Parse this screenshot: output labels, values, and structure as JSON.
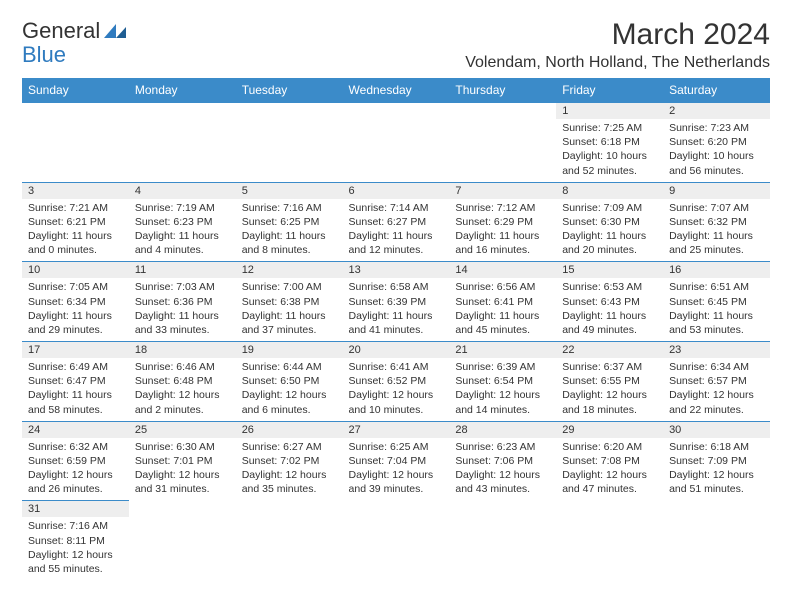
{
  "logo": {
    "text1": "General",
    "text2": "Blue"
  },
  "title": "March 2024",
  "location": "Volendam, North Holland, The Netherlands",
  "colors": {
    "header_bg": "#3b8bc9",
    "header_text": "#ffffff",
    "daynum_bg": "#eeeeee",
    "border": "#3b8bc9",
    "text": "#333333",
    "logo_blue": "#2f7bbf"
  },
  "days_of_week": [
    "Sunday",
    "Monday",
    "Tuesday",
    "Wednesday",
    "Thursday",
    "Friday",
    "Saturday"
  ],
  "weeks": [
    [
      null,
      null,
      null,
      null,
      null,
      {
        "n": "1",
        "sr": "7:25 AM",
        "ss": "6:18 PM",
        "dl": "10 hours and 52 minutes."
      },
      {
        "n": "2",
        "sr": "7:23 AM",
        "ss": "6:20 PM",
        "dl": "10 hours and 56 minutes."
      }
    ],
    [
      {
        "n": "3",
        "sr": "7:21 AM",
        "ss": "6:21 PM",
        "dl": "11 hours and 0 minutes."
      },
      {
        "n": "4",
        "sr": "7:19 AM",
        "ss": "6:23 PM",
        "dl": "11 hours and 4 minutes."
      },
      {
        "n": "5",
        "sr": "7:16 AM",
        "ss": "6:25 PM",
        "dl": "11 hours and 8 minutes."
      },
      {
        "n": "6",
        "sr": "7:14 AM",
        "ss": "6:27 PM",
        "dl": "11 hours and 12 minutes."
      },
      {
        "n": "7",
        "sr": "7:12 AM",
        "ss": "6:29 PM",
        "dl": "11 hours and 16 minutes."
      },
      {
        "n": "8",
        "sr": "7:09 AM",
        "ss": "6:30 PM",
        "dl": "11 hours and 20 minutes."
      },
      {
        "n": "9",
        "sr": "7:07 AM",
        "ss": "6:32 PM",
        "dl": "11 hours and 25 minutes."
      }
    ],
    [
      {
        "n": "10",
        "sr": "7:05 AM",
        "ss": "6:34 PM",
        "dl": "11 hours and 29 minutes."
      },
      {
        "n": "11",
        "sr": "7:03 AM",
        "ss": "6:36 PM",
        "dl": "11 hours and 33 minutes."
      },
      {
        "n": "12",
        "sr": "7:00 AM",
        "ss": "6:38 PM",
        "dl": "11 hours and 37 minutes."
      },
      {
        "n": "13",
        "sr": "6:58 AM",
        "ss": "6:39 PM",
        "dl": "11 hours and 41 minutes."
      },
      {
        "n": "14",
        "sr": "6:56 AM",
        "ss": "6:41 PM",
        "dl": "11 hours and 45 minutes."
      },
      {
        "n": "15",
        "sr": "6:53 AM",
        "ss": "6:43 PM",
        "dl": "11 hours and 49 minutes."
      },
      {
        "n": "16",
        "sr": "6:51 AM",
        "ss": "6:45 PM",
        "dl": "11 hours and 53 minutes."
      }
    ],
    [
      {
        "n": "17",
        "sr": "6:49 AM",
        "ss": "6:47 PM",
        "dl": "11 hours and 58 minutes."
      },
      {
        "n": "18",
        "sr": "6:46 AM",
        "ss": "6:48 PM",
        "dl": "12 hours and 2 minutes."
      },
      {
        "n": "19",
        "sr": "6:44 AM",
        "ss": "6:50 PM",
        "dl": "12 hours and 6 minutes."
      },
      {
        "n": "20",
        "sr": "6:41 AM",
        "ss": "6:52 PM",
        "dl": "12 hours and 10 minutes."
      },
      {
        "n": "21",
        "sr": "6:39 AM",
        "ss": "6:54 PM",
        "dl": "12 hours and 14 minutes."
      },
      {
        "n": "22",
        "sr": "6:37 AM",
        "ss": "6:55 PM",
        "dl": "12 hours and 18 minutes."
      },
      {
        "n": "23",
        "sr": "6:34 AM",
        "ss": "6:57 PM",
        "dl": "12 hours and 22 minutes."
      }
    ],
    [
      {
        "n": "24",
        "sr": "6:32 AM",
        "ss": "6:59 PM",
        "dl": "12 hours and 26 minutes."
      },
      {
        "n": "25",
        "sr": "6:30 AM",
        "ss": "7:01 PM",
        "dl": "12 hours and 31 minutes."
      },
      {
        "n": "26",
        "sr": "6:27 AM",
        "ss": "7:02 PM",
        "dl": "12 hours and 35 minutes."
      },
      {
        "n": "27",
        "sr": "6:25 AM",
        "ss": "7:04 PM",
        "dl": "12 hours and 39 minutes."
      },
      {
        "n": "28",
        "sr": "6:23 AM",
        "ss": "7:06 PM",
        "dl": "12 hours and 43 minutes."
      },
      {
        "n": "29",
        "sr": "6:20 AM",
        "ss": "7:08 PM",
        "dl": "12 hours and 47 minutes."
      },
      {
        "n": "30",
        "sr": "6:18 AM",
        "ss": "7:09 PM",
        "dl": "12 hours and 51 minutes."
      }
    ],
    [
      {
        "n": "31",
        "sr": "7:16 AM",
        "ss": "8:11 PM",
        "dl": "12 hours and 55 minutes."
      },
      null,
      null,
      null,
      null,
      null,
      null
    ]
  ],
  "labels": {
    "sunrise": "Sunrise:",
    "sunset": "Sunset:",
    "daylight": "Daylight:"
  }
}
